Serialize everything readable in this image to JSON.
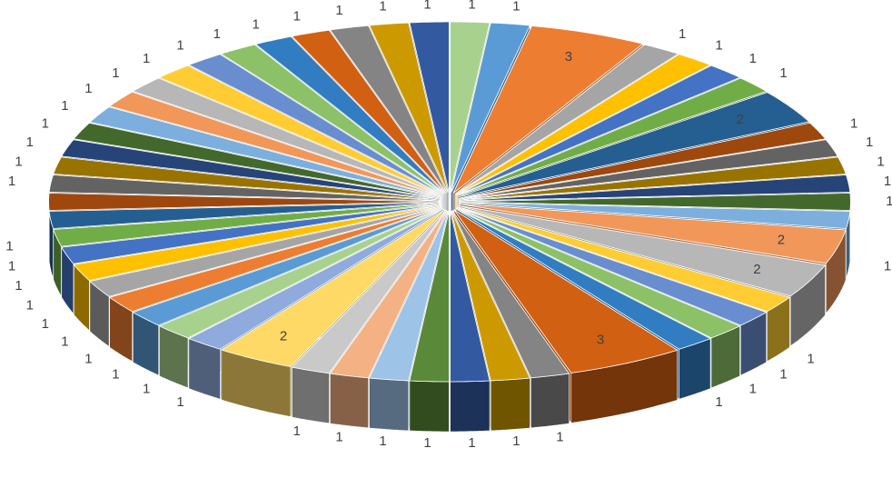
{
  "chart_data": {
    "type": "pie3d",
    "values": [
      1,
      1,
      3,
      1,
      1,
      1,
      1,
      2,
      1,
      1,
      1,
      1,
      1,
      1,
      2,
      2,
      1,
      1,
      1,
      1,
      3,
      1,
      1,
      1,
      1,
      1,
      1,
      1,
      2,
      1,
      1,
      1,
      1,
      1,
      1,
      1,
      1,
      1,
      1,
      1,
      1,
      1,
      1,
      1,
      1,
      1,
      1,
      1,
      1,
      1,
      1,
      1,
      1,
      1
    ],
    "colors": [
      "#a9d18e",
      "#5b9bd5",
      "#ed7d31",
      "#a5a5a5",
      "#ffc000",
      "#4472c4",
      "#70ad47",
      "#255e91",
      "#9e480e",
      "#636363",
      "#997300",
      "#264478",
      "#43682b",
      "#7cafdd",
      "#f1975a",
      "#b7b7b7",
      "#ffcd33",
      "#698ed0",
      "#8cc168",
      "#327dc2",
      "#d26012",
      "#848484",
      "#cc9a00",
      "#335aa1",
      "#5a8a39",
      "#9dc3e6",
      "#f4b183",
      "#c9c9c9",
      "#ffd966",
      "#8faadc"
    ]
  }
}
